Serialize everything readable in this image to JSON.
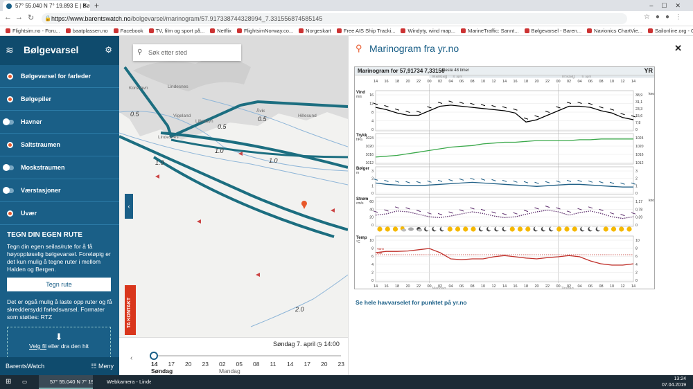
{
  "browser": {
    "tab_title": "57° 55.040 N 7° 19.893 E | Bølge...",
    "url_prefix": "https://www.barentswatch.no",
    "url_path": "/bolgevarsel/marinogram/57.917338744328994_7.331556874585145",
    "bookmarks": [
      "Flightsim.no - Foru...",
      "baatplassen.no",
      "Facebook",
      "TV, film og sport på...",
      "Netflix",
      "FlightsimNorway.co...",
      "Norgeskart",
      "Free AIS Ship Tracki...",
      "Windyty, wind map...",
      "MarineTraffic: Sannt...",
      "Bølgevarsel - Baren...",
      "Navionics ChartVie...",
      "Sailonline.org - Onli..."
    ]
  },
  "sidebar": {
    "title": "Bølgevarsel",
    "items": [
      {
        "label": "Bølgevarsel for farleder",
        "kind": "dot"
      },
      {
        "label": "Bølgepiler",
        "kind": "dot"
      },
      {
        "label": "Havner",
        "kind": "toggle"
      },
      {
        "label": "Saltstraumen",
        "kind": "dot"
      },
      {
        "label": "Moskstraumen",
        "kind": "toggle"
      },
      {
        "label": "Værstasjoner",
        "kind": "toggle"
      },
      {
        "label": "Uvær",
        "kind": "dot"
      }
    ],
    "rute_heading": "TEGN DIN EGEN RUTE",
    "rute_text": "Tegn din egen seilas/rute for å få høyoppløselig bølgevarsel. Foreløpig er det kun mulig å tegne ruter i mellom Halden og Bergen.",
    "rute_button": "Tegn rute",
    "upload_text": "Det er også mulig å laste opp ruter og få skreddersydd farledsvarsel. Formater som støttes: RTZ",
    "upload_link": "Velg fil",
    "upload_rest": " eller dra den hit",
    "footer_brand": "BarentsWatch",
    "footer_menu": "Meny"
  },
  "map": {
    "search_placeholder": "Søk etter sted",
    "places": [
      "Korshavn",
      "Lindesnes",
      "Vigeland",
      "Lillehavn",
      "Åvik",
      "Hillesund",
      "Lindesnes"
    ],
    "contour_labels": [
      "0.5",
      "0.5",
      "0.5",
      "1.0",
      "1.0",
      "1.0",
      "2.0"
    ],
    "contact_label": "TA KONTAKT"
  },
  "timeline": {
    "date": "Søndag 7. april",
    "time": "14:00",
    "hours": [
      "14",
      "17",
      "20",
      "23",
      "02",
      "05",
      "08",
      "11",
      "14",
      "17",
      "20",
      "23"
    ],
    "day1": "Søndag",
    "day2": "Mandag"
  },
  "panel": {
    "title": "Marinogram fra yr.no",
    "link": "Se hele havvarselet for punktet på yr.no"
  },
  "marinogram": {
    "title": "Marinogram for 57,91734 7,33156",
    "subtitle": "Neste 48 timer",
    "logo": "YR",
    "day_labels": [
      "Mandag",
      "Tirsdag"
    ],
    "day_dates": [
      "8. april",
      "9. april"
    ],
    "hours": [
      "14",
      "16",
      "18",
      "20",
      "22",
      "00",
      "02",
      "04",
      "06",
      "08",
      "10",
      "12",
      "14",
      "16",
      "18",
      "20",
      "22",
      "00",
      "02",
      "04",
      "06",
      "08",
      "10",
      "12",
      "14"
    ],
    "panels": [
      {
        "label": "Vind",
        "unit": "m/s",
        "left_ticks": [
          "16",
          "12",
          "8",
          "4",
          "0"
        ],
        "right_label": "knop",
        "right_ticks": [
          "38,9",
          "31,1",
          "23,3",
          "15,6",
          "7,8",
          "0"
        ],
        "color": "#000000"
      },
      {
        "label": "Trykk",
        "unit": "hPa",
        "left_ticks": [
          "1024",
          "1020",
          "1016",
          "1012"
        ],
        "right_ticks": [
          "1024",
          "1020",
          "1016",
          "1012"
        ],
        "color": "#3aa84a"
      },
      {
        "label": "Bølger",
        "unit": "m",
        "left_ticks": [
          "3",
          "2",
          "1",
          "0"
        ],
        "right_ticks": [
          "3",
          "2",
          "1",
          "0"
        ],
        "color": "#1f5f86"
      },
      {
        "label": "Strøm",
        "unit": "cm/s",
        "left_ticks": [
          "60",
          "40",
          "20",
          "0"
        ],
        "right_label": "knop",
        "right_ticks": [
          "1,17",
          "0,78",
          "0,39",
          "0"
        ],
        "color": "#5a2a6a"
      },
      {
        "label": "Temp",
        "unit": "°C",
        "left_ticks": [
          "10",
          "8",
          "6",
          "4",
          "2",
          "0"
        ],
        "right_ticks": [
          "10",
          "8",
          "6",
          "4",
          "2",
          "0"
        ],
        "color": "#c0302a",
        "legend": [
          "Vann",
          "Luft"
        ]
      }
    ],
    "weather_icons": [
      "sun",
      "sun",
      "sun",
      "sun-cloud",
      "cloud",
      "moon-cloud",
      "moon",
      "moon",
      "moon",
      "sun",
      "sun",
      "sun",
      "sun",
      "moon",
      "moon",
      "moon",
      "moon",
      "sun",
      "sun",
      "sun",
      "moon",
      "moon",
      "moon",
      "sun",
      "sun",
      "sun",
      "moon",
      "moon",
      "moon",
      "sun",
      "sun",
      "sun",
      "sun"
    ]
  },
  "chart_data": [
    {
      "type": "line",
      "title": "Vind",
      "ylabel": "m/s",
      "ylim": [
        0,
        16
      ],
      "x": [
        "14",
        "16",
        "18",
        "20",
        "22",
        "00",
        "02",
        "04",
        "06",
        "08",
        "10",
        "12",
        "14",
        "16",
        "18",
        "20",
        "22",
        "00",
        "02",
        "04",
        "06",
        "08",
        "10",
        "12",
        "14"
      ],
      "values": [
        9.5,
        8.5,
        7,
        6,
        6,
        8,
        10,
        10.5,
        10,
        9.5,
        9,
        8.5,
        8,
        7,
        3,
        4,
        6,
        8,
        10,
        10,
        9.5,
        8,
        7,
        5,
        4
      ]
    },
    {
      "type": "line",
      "title": "Trykk",
      "ylabel": "hPa",
      "ylim": [
        1010,
        1026
      ],
      "x": [
        "14",
        "16",
        "18",
        "20",
        "22",
        "00",
        "02",
        "04",
        "06",
        "08",
        "10",
        "12",
        "14",
        "16",
        "18",
        "20",
        "22",
        "00",
        "02",
        "04",
        "06",
        "08",
        "10",
        "12",
        "14"
      ],
      "values": [
        1013,
        1013.5,
        1014,
        1015,
        1016,
        1017,
        1018,
        1019,
        1019.5,
        1020,
        1021,
        1021.5,
        1022,
        1022,
        1022.5,
        1023,
        1023,
        1023,
        1023,
        1023.5,
        1023.5,
        1024,
        1024,
        1024,
        1024
      ]
    },
    {
      "type": "line",
      "title": "Bølger",
      "ylabel": "m",
      "ylim": [
        0,
        3.5
      ],
      "x": [
        "14",
        "16",
        "18",
        "20",
        "22",
        "00",
        "02",
        "04",
        "06",
        "08",
        "10",
        "12",
        "14",
        "16",
        "18",
        "20",
        "22",
        "00",
        "02",
        "04",
        "06",
        "08",
        "10",
        "12",
        "14"
      ],
      "values": [
        1.4,
        1.2,
        1.1,
        1.0,
        1.0,
        1.1,
        1.2,
        1.3,
        1.4,
        1.5,
        1.4,
        1.3,
        1.2,
        1.1,
        1.0,
        0.9,
        1.0,
        1.1,
        1.2,
        1.2,
        1.1,
        1.0,
        0.9,
        0.8,
        0.8
      ]
    },
    {
      "type": "line",
      "title": "Strøm",
      "ylabel": "cm/s",
      "ylim": [
        0,
        60
      ],
      "x": [
        "14",
        "16",
        "18",
        "20",
        "22",
        "00",
        "02",
        "04",
        "06",
        "08",
        "10",
        "12",
        "14",
        "16",
        "18",
        "20",
        "22",
        "00",
        "02",
        "04",
        "06",
        "08",
        "10",
        "12",
        "14"
      ],
      "values": [
        22,
        25,
        32,
        30,
        24,
        18,
        16,
        20,
        25,
        30,
        26,
        20,
        16,
        18,
        24,
        30,
        34,
        30,
        22,
        28,
        32,
        26,
        18,
        14,
        18
      ]
    },
    {
      "type": "line",
      "title": "Temp",
      "ylabel": "°C",
      "ylim": [
        0,
        10
      ],
      "x": [
        "14",
        "16",
        "18",
        "20",
        "22",
        "00",
        "02",
        "04",
        "06",
        "08",
        "10",
        "12",
        "14",
        "16",
        "18",
        "20",
        "22",
        "00",
        "02",
        "04",
        "06",
        "08",
        "10",
        "12",
        "14"
      ],
      "series": [
        {
          "name": "Vann",
          "values": [
            6,
            6,
            6,
            6,
            6,
            6,
            6,
            6,
            6,
            6,
            6,
            6,
            6,
            6,
            6,
            6,
            6,
            6,
            6,
            6,
            6,
            6,
            6,
            6,
            6
          ]
        },
        {
          "name": "Luft",
          "values": [
            6.5,
            6.8,
            6.8,
            6.9,
            7.2,
            7.5,
            6.5,
            5,
            4.8,
            5,
            5,
            5.5,
            5.8,
            5.5,
            5.2,
            5,
            5.3,
            5.5,
            5.8,
            5.5,
            4.5,
            3.8,
            3.5,
            3.5,
            3.8
          ]
        }
      ]
    }
  ],
  "taskbar": {
    "items": [
      "57° 55.040 N 7° 19.8...",
      "Webkamera - Linde..."
    ],
    "time": "13:24",
    "date": "07.04.2019"
  }
}
